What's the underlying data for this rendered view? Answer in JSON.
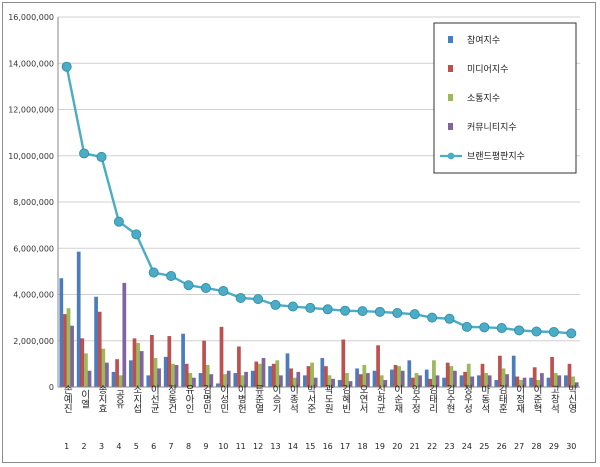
{
  "chart_data": {
    "type": "bar",
    "categories": [
      "손예진",
      "이엘",
      "송지효",
      "공유",
      "소지섭",
      "이선균",
      "장동건",
      "유아인",
      "김명민",
      "이성민",
      "이병헌",
      "류준열",
      "이승기",
      "이종석",
      "박서준",
      "곽도원",
      "김혜빈",
      "오연서",
      "신하균",
      "이순재",
      "임수정",
      "김태리",
      "김수현",
      "정우성",
      "마동석",
      "김태훈",
      "이정재",
      "이준혁",
      "고창석",
      "박신영"
    ],
    "indices": [
      "1",
      "2",
      "3",
      "4",
      "5",
      "6",
      "7",
      "8",
      "9",
      "10",
      "11",
      "12",
      "13",
      "14",
      "15",
      "16",
      "17",
      "18",
      "19",
      "20",
      "21",
      "22",
      "23",
      "24",
      "25",
      "26",
      "27",
      "28",
      "29",
      "30"
    ],
    "series": [
      {
        "name": "참여지수",
        "kind": "bar",
        "color": "#4a7cc0",
        "values": [
          4700000,
          5850000,
          3900000,
          650000,
          1150000,
          500000,
          1300000,
          2300000,
          600000,
          150000,
          600000,
          700000,
          900000,
          1450000,
          500000,
          1250000,
          300000,
          800000,
          700000,
          750000,
          1150000,
          750000,
          400000,
          500000,
          500000,
          300000,
          1350000,
          400000,
          400000,
          500000
        ]
      },
      {
        "name": "미디어지수",
        "kind": "bar",
        "color": "#c0504d",
        "values": [
          3150000,
          2100000,
          3250000,
          1200000,
          2100000,
          2250000,
          2200000,
          1000000,
          2000000,
          2600000,
          1750000,
          1100000,
          1000000,
          800000,
          900000,
          900000,
          2050000,
          550000,
          1800000,
          950000,
          400000,
          350000,
          1050000,
          650000,
          1000000,
          1350000,
          450000,
          850000,
          1300000,
          1000000
        ]
      },
      {
        "name": "소통지수",
        "kind": "bar",
        "color": "#9bbb59",
        "values": [
          3400000,
          1450000,
          1650000,
          500000,
          1900000,
          1250000,
          1000000,
          600000,
          950000,
          550000,
          500000,
          1000000,
          1150000,
          400000,
          1050000,
          500000,
          600000,
          950000,
          500000,
          900000,
          600000,
          1150000,
          900000,
          1000000,
          600000,
          800000,
          300000,
          300000,
          600000,
          450000
        ]
      },
      {
        "name": "커뮤니티지수",
        "kind": "bar",
        "color": "#8064a2",
        "values": [
          2650000,
          700000,
          1050000,
          4500000,
          1550000,
          800000,
          950000,
          400000,
          550000,
          700000,
          650000,
          1250000,
          500000,
          650000,
          400000,
          350000,
          250000,
          600000,
          300000,
          700000,
          500000,
          500000,
          700000,
          450000,
          500000,
          550000,
          400000,
          600000,
          500000,
          200000
        ]
      },
      {
        "name": "브랜드평판지수",
        "kind": "line",
        "color": "#4bacc6",
        "values": [
          13850000,
          10100000,
          9950000,
          7150000,
          6600000,
          4950000,
          4800000,
          4400000,
          4280000,
          4150000,
          3850000,
          3800000,
          3550000,
          3480000,
          3420000,
          3360000,
          3300000,
          3280000,
          3250000,
          3200000,
          3150000,
          3000000,
          2950000,
          2600000,
          2580000,
          2550000,
          2450000,
          2400000,
          2380000,
          2320000
        ]
      }
    ],
    "ylim": [
      0,
      16000000
    ],
    "yticks": [
      "0",
      "2,000,000",
      "4,000,000",
      "6,000,000",
      "8,000,000",
      "10,000,000",
      "12,000,000",
      "14,000,000",
      "16,000,000"
    ],
    "ytick_values": [
      0,
      2000000,
      4000000,
      6000000,
      8000000,
      10000000,
      12000000,
      14000000,
      16000000
    ],
    "grid": true,
    "legend_position": "top-right",
    "title": "",
    "xlabel": "",
    "ylabel": ""
  }
}
